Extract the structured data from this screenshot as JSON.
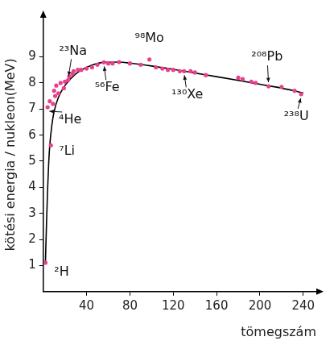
{
  "chart_data": {
    "type": "scatter",
    "x_label": "tömegszám",
    "y_label": "kötési energia / nukleon(MeV)",
    "xlim": [
      0,
      252
    ],
    "ylim": [
      0,
      10.5
    ],
    "xticks": [
      40,
      80,
      120,
      160,
      200,
      240
    ],
    "yticks": [
      1,
      2,
      3,
      4,
      5,
      6,
      7,
      8,
      9
    ],
    "grid": false,
    "series": [
      {
        "type": "line",
        "color": "#000000",
        "x": [
          2,
          3,
          4,
          5,
          6,
          8,
          10,
          14,
          20,
          30,
          40,
          56,
          70,
          80,
          100,
          120,
          140,
          160,
          180,
          200,
          220,
          240
        ],
        "values": [
          1.11,
          2.6,
          3.9,
          4.9,
          5.6,
          6.4,
          6.9,
          7.45,
          7.9,
          8.35,
          8.6,
          8.79,
          8.8,
          8.76,
          8.65,
          8.52,
          8.38,
          8.24,
          8.1,
          7.95,
          7.8,
          7.62
        ]
      },
      {
        "type": "scatter",
        "color": "#e8408a",
        "x": [
          2,
          4,
          6,
          7,
          9,
          10,
          11,
          12,
          14,
          16,
          19,
          20,
          23,
          24,
          27,
          28,
          32,
          35,
          40,
          45,
          50,
          56,
          60,
          64,
          70,
          80,
          90,
          98,
          104,
          110,
          115,
          120,
          126,
          130,
          136,
          140,
          150,
          180,
          184,
          192,
          196,
          208,
          220,
          232,
          238
        ],
        "values": [
          1.11,
          7.07,
          7.3,
          5.61,
          7.2,
          7.7,
          7.5,
          7.9,
          7.6,
          8.0,
          7.8,
          8.05,
          8.11,
          8.25,
          8.35,
          8.45,
          8.5,
          8.5,
          8.55,
          8.6,
          8.7,
          8.79,
          8.75,
          8.75,
          8.8,
          8.75,
          8.7,
          8.9,
          8.6,
          8.55,
          8.5,
          8.5,
          8.45,
          8.45,
          8.45,
          8.4,
          8.3,
          8.2,
          8.15,
          8.05,
          8.0,
          7.87,
          7.85,
          7.7,
          7.57
        ]
      }
    ],
    "annotations": [
      {
        "text": "²H",
        "x": 2,
        "y": 1.11
      },
      {
        "text": "⁷Li",
        "x": 7,
        "y": 5.61
      },
      {
        "text": "⁴He",
        "x": 4,
        "y": 7.07
      },
      {
        "text": "²³Na",
        "x": 23,
        "y": 8.11
      },
      {
        "text": "⁵⁶Fe",
        "x": 56,
        "y": 8.79
      },
      {
        "text": "⁹⁸Mo",
        "x": 98,
        "y": 8.9
      },
      {
        "text": "¹³⁰Xe",
        "x": 130,
        "y": 8.45
      },
      {
        "text": "²⁰⁸Pb",
        "x": 208,
        "y": 7.87
      },
      {
        "text": "²³⁸U",
        "x": 238,
        "y": 7.57
      }
    ]
  }
}
